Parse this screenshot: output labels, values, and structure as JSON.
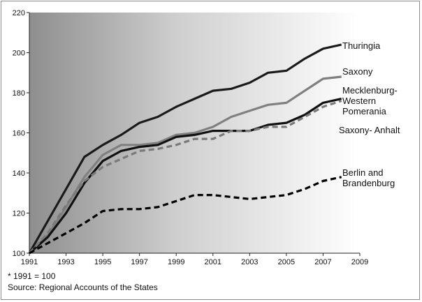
{
  "chart_data": {
    "type": "line",
    "title": "",
    "xlabel": "",
    "ylabel": "",
    "xlim": [
      1991,
      2009
    ],
    "ylim": [
      100,
      220
    ],
    "x_ticks": [
      1991,
      1993,
      1995,
      1997,
      1999,
      2001,
      2003,
      2005,
      2007,
      2009
    ],
    "y_ticks": [
      100,
      120,
      140,
      160,
      180,
      200,
      220
    ],
    "x": [
      1991,
      1992,
      1993,
      1994,
      1995,
      1996,
      1997,
      1998,
      1999,
      2000,
      2001,
      2002,
      2003,
      2004,
      2005,
      2006,
      2007,
      2008
    ],
    "background": "gradient dark grey (left) to white (right)",
    "series": [
      {
        "name": "Thuringia",
        "label_lines": [
          "Thuringia"
        ],
        "color": "#1a1a1a",
        "dash": "solid",
        "values": [
          100,
          116,
          132,
          148,
          154,
          159,
          165,
          168,
          173,
          177,
          181,
          182,
          185,
          190,
          191,
          197,
          202,
          204
        ]
      },
      {
        "name": "Saxony",
        "label_lines": [
          "Saxony"
        ],
        "color": "#808080",
        "dash": "solid",
        "values": [
          100,
          109,
          123,
          138,
          149,
          154,
          154,
          155,
          159,
          160,
          163,
          168,
          171,
          174,
          175,
          181,
          187,
          188
        ]
      },
      {
        "name": "Mecklenburg-Western Pomerania",
        "label_lines": [
          "Mecklenburg-",
          "Western",
          "Pomerania"
        ],
        "color": "#111111",
        "dash": "solid",
        "values": [
          100,
          108,
          120,
          135,
          146,
          151,
          153,
          154,
          158,
          159,
          161,
          161,
          161,
          164,
          165,
          169,
          175,
          177
        ]
      },
      {
        "name": "Saxony- Anhalt",
        "label_lines": [
          "Saxony- Anhalt"
        ],
        "color": "#7a7a7a",
        "dash": "dashed",
        "values": [
          100,
          110,
          124,
          136,
          143,
          147,
          151,
          152,
          154,
          157,
          157,
          161,
          161,
          163,
          163,
          168,
          173,
          176
        ]
      },
      {
        "name": "Berlin and Brandenburg",
        "label_lines": [
          "Berlin and",
          "Brandenburg"
        ],
        "color": "#000000",
        "dash": "dashed",
        "values": [
          100,
          105,
          110,
          115,
          121,
          122,
          122,
          123,
          126,
          129,
          129,
          128,
          127,
          128,
          129,
          132,
          136,
          138
        ]
      }
    ],
    "footnotes": [
      "* 1991 = 100",
      "Source: Regional Accounts of the States"
    ]
  }
}
